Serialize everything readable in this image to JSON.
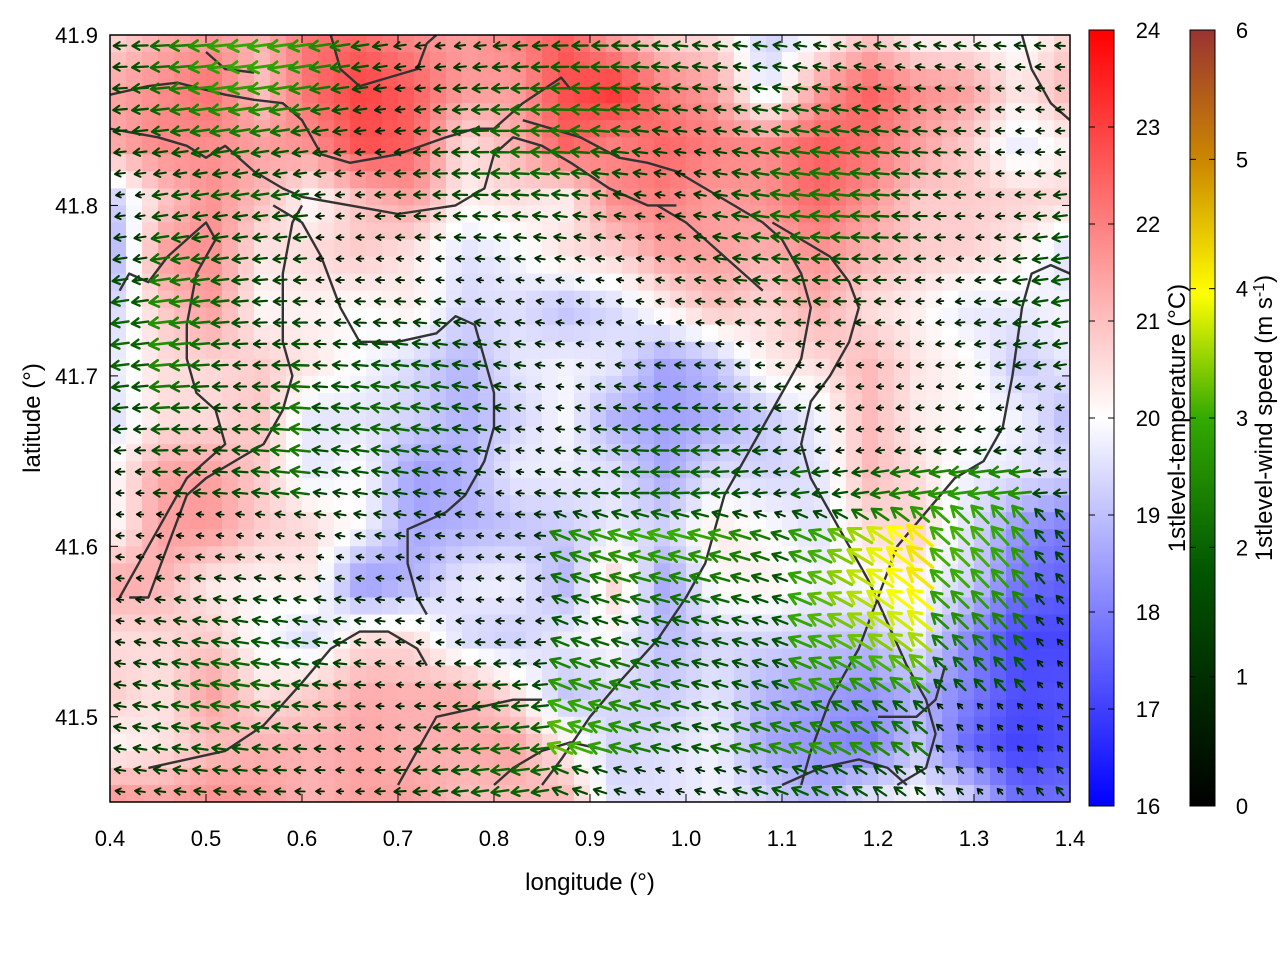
{
  "chart_data": {
    "type": "heatmap",
    "title": "",
    "xlabel": "longitude (°)",
    "ylabel": "latitude (°)",
    "xlim": [
      0.4,
      1.4
    ],
    "ylim": [
      41.45,
      41.9
    ],
    "x_ticks": [
      "0.4",
      "0.5",
      "0.6",
      "0.7",
      "0.8",
      "0.9",
      "1.0",
      "1.1",
      "1.2",
      "1.3",
      "1.4"
    ],
    "y_ticks": [
      "41.5",
      "41.6",
      "41.7",
      "41.8",
      "41.9"
    ],
    "temperature_colorbar": {
      "label": "1stlevel-temperature (°C)",
      "range": [
        16,
        24
      ],
      "ticks": [
        "16",
        "17",
        "18",
        "19",
        "20",
        "21",
        "22",
        "23",
        "24"
      ],
      "colors": [
        "#0000ff",
        "#ffffff",
        "#ff0000"
      ]
    },
    "wind_colorbar": {
      "label_main": "1stlevel-wind speed (m s",
      "label_sup": "-1",
      "label_end": ")",
      "range": [
        0,
        6
      ],
      "ticks": [
        "0",
        "1",
        "2",
        "3",
        "4",
        "5",
        "6"
      ],
      "colors": [
        "#000000",
        "#005500",
        "#33aa00",
        "#ffff00",
        "#cc8800",
        "#993333"
      ]
    },
    "temperature_field": [
      [
        20.5,
        21.2,
        21.5,
        21.2,
        22.2,
        22.3,
        21.8,
        21.5,
        22.0,
        22.5,
        21.3,
        20.5,
        20.5,
        19.2,
        19.8,
        20.8,
        20.0,
        20.1,
        19.8,
        20.7
      ],
      [
        21.4,
        21.8,
        22.3,
        21.0,
        22.3,
        23.0,
        22.5,
        21.6,
        21.5,
        22.8,
        23.2,
        22.0,
        21.5,
        19.5,
        21.5,
        22.5,
        21.8,
        21.5,
        20.4,
        21.2
      ],
      [
        21.3,
        21.9,
        21.8,
        21.5,
        21.8,
        22.8,
        22.5,
        20.5,
        21.2,
        22.5,
        22.0,
        22.4,
        22.0,
        21.8,
        22.5,
        22.3,
        21.5,
        20.8,
        19.6,
        20.3
      ],
      [
        19.0,
        20.8,
        21.7,
        21.0,
        20.0,
        21.0,
        21.5,
        20.2,
        20.5,
        20.2,
        21.8,
        22.0,
        21.5,
        21.7,
        22.4,
        21.7,
        20.8,
        20.8,
        20.7,
        20.6
      ],
      [
        18.5,
        21.5,
        21.8,
        20.4,
        20.6,
        20.8,
        20.4,
        19.5,
        19.8,
        20.5,
        20.7,
        21.5,
        21.5,
        21.2,
        21.7,
        21.2,
        20.8,
        20.7,
        20.3,
        19.4
      ],
      [
        19.2,
        20.8,
        21.6,
        20.1,
        20.2,
        20.0,
        20.3,
        19.4,
        19.5,
        19.0,
        19.4,
        20.2,
        21.0,
        20.6,
        21.3,
        20.5,
        20.2,
        19.6,
        19.7,
        19.9
      ],
      [
        19.6,
        20.5,
        20.6,
        20.8,
        20.4,
        19.9,
        19.4,
        18.8,
        19.6,
        19.8,
        19.6,
        18.5,
        19.0,
        20.3,
        20.5,
        21.1,
        20.4,
        20.1,
        19.1,
        19.7
      ],
      [
        19.4,
        20.5,
        20.6,
        20.9,
        19.6,
        19.6,
        19.3,
        18.8,
        19.3,
        19.9,
        18.8,
        18.5,
        18.7,
        19.2,
        19.7,
        21.1,
        20.3,
        20.1,
        19.8,
        18.9
      ],
      [
        20.0,
        21.4,
        21.5,
        20.8,
        19.6,
        20.0,
        18.5,
        18.7,
        19.7,
        19.7,
        19.5,
        18.6,
        19.5,
        19.3,
        19.5,
        21.1,
        20.5,
        19.8,
        19.6,
        19.3
      ],
      [
        19.9,
        21.5,
        21.6,
        20.8,
        20.6,
        19.9,
        18.6,
        18.8,
        19.0,
        19.2,
        19.7,
        19.3,
        20.4,
        20.0,
        19.5,
        20.5,
        20.7,
        19.5,
        18.3,
        17.9
      ],
      [
        21.4,
        21.2,
        20.3,
        20.2,
        20.3,
        18.3,
        18.8,
        19.7,
        19.8,
        18.8,
        20.7,
        18.5,
        20.1,
        20.3,
        19.8,
        20.0,
        20.1,
        19.3,
        17.8,
        17.5
      ],
      [
        20.5,
        20.6,
        20.8,
        19.9,
        19.4,
        20.5,
        20.5,
        19.4,
        19.2,
        19.7,
        20.0,
        18.9,
        19.4,
        19.4,
        19.2,
        19.0,
        19.8,
        18.1,
        17.1,
        17.1
      ],
      [
        20.8,
        20.4,
        21.5,
        20.5,
        20.8,
        21.3,
        21.2,
        21.3,
        20.5,
        19.1,
        19.4,
        19.2,
        19.6,
        18.8,
        18.5,
        18.3,
        18.8,
        18.0,
        17.2,
        17.3
      ],
      [
        20.1,
        20.4,
        21.0,
        21.2,
        21.2,
        21.4,
        21.2,
        21.3,
        21.5,
        20.3,
        19.3,
        19.5,
        19.8,
        18.6,
        18.3,
        18.0,
        19.1,
        17.6,
        17.0,
        17.3
      ],
      [
        21.8,
        21.5,
        21.8,
        21.6,
        21.2,
        21.5,
        21.5,
        21.0,
        21.0,
        21.2,
        19.5,
        19.5,
        19.8,
        19.4,
        18.8,
        19.7,
        20.0,
        19.4,
        17.7,
        17.8
      ]
    ],
    "contour_line_color": "#333333",
    "arrow_note": "wind vectors colored by 1stlevel-wind speed"
  }
}
